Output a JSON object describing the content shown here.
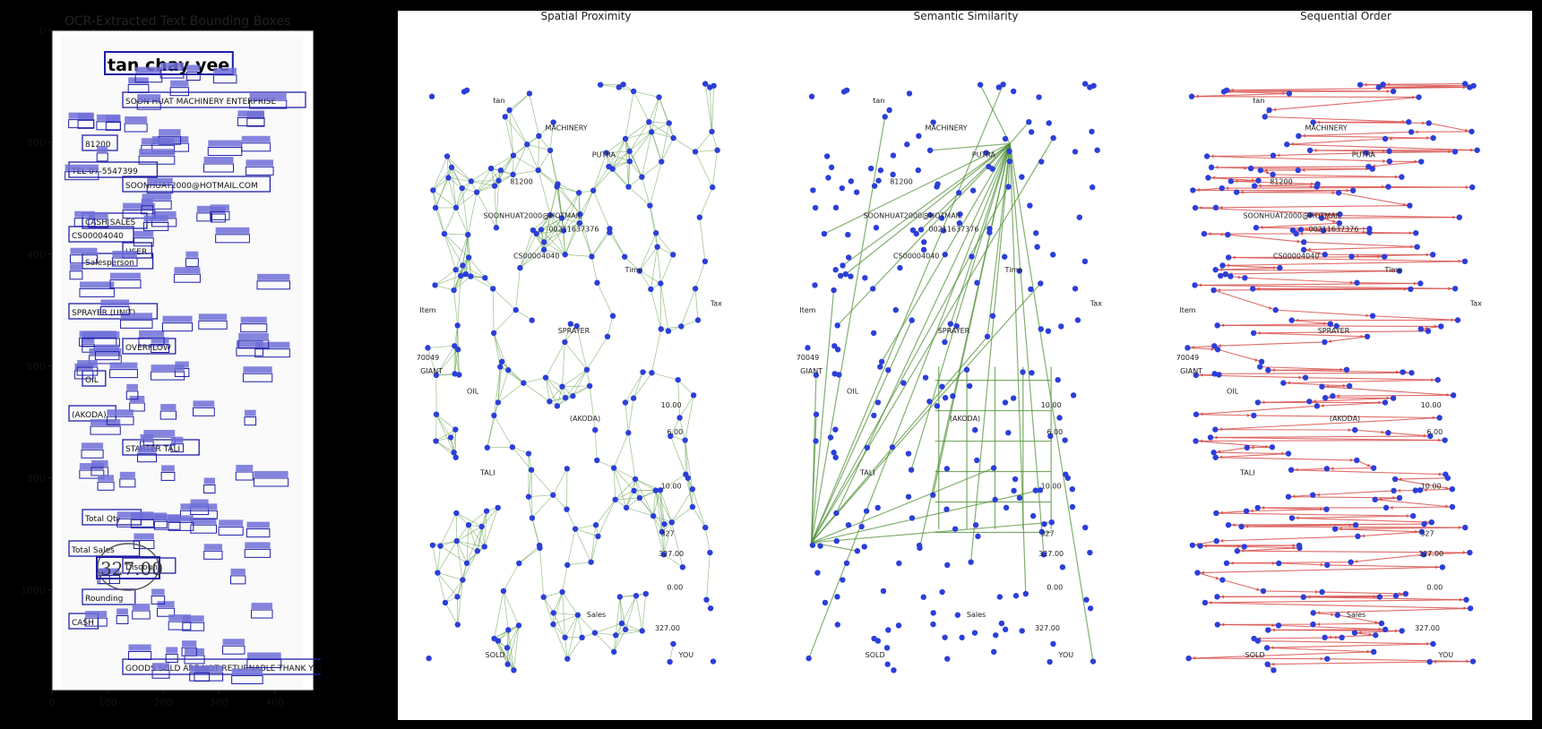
{
  "ocr_panel": {
    "title": "OCR-Extracted Text Bounding Boxes",
    "x_ticks": [
      "0",
      "100",
      "200",
      "300",
      "400"
    ],
    "y_ticks": [
      "0",
      "200",
      "400",
      "600",
      "800",
      "1000"
    ],
    "receipt_lines": [
      {
        "text": "tan chay yee",
        "big": true
      },
      {
        "text": "SOON HUAT MACHINERY ENTERPRISE",
        "big": false
      },
      {
        "text": "81200",
        "big": false
      },
      {
        "text": "TEL 07-5547399",
        "big": false
      },
      {
        "text": "SOONHUAT2000@HOTMAIL.COM",
        "big": false
      },
      {
        "text": "CASH SALES",
        "big": false
      },
      {
        "text": "CS00004040",
        "big": false
      },
      {
        "text": "USER",
        "big": false
      },
      {
        "text": "Salesperson",
        "big": false
      },
      {
        "text": "SPRAYER (UNIT)",
        "big": false
      },
      {
        "text": "OVERFLOW",
        "big": false
      },
      {
        "text": "OIL",
        "big": false
      },
      {
        "text": "(AKODA)",
        "big": false
      },
      {
        "text": "STARTER TALI",
        "big": false
      },
      {
        "text": "Total Qty",
        "big": false
      },
      {
        "text": "Total Sales",
        "big": false
      },
      {
        "text": "Discount",
        "big": false
      },
      {
        "text": "Rounding",
        "big": false
      },
      {
        "text": "CASH",
        "big": false
      },
      {
        "text": "GOODS SOLD ARE NOT RETURNABLE THANK YOU",
        "big": false
      }
    ],
    "handwritten_total": "327.00"
  },
  "graphs": [
    {
      "title": "Spatial Proximity",
      "edge_color": "#5a9a40",
      "node_labels": [
        "tan",
        "MACHINERY",
        "PUTRA",
        "81200",
        "SOONHUAT2000@HOTMAIL",
        "00211637376",
        "CS00004040",
        "Time",
        "Item",
        "Tax",
        "SPRAYER",
        "70049",
        "GIANT",
        "OIL",
        "(AKODA)",
        "10.00",
        "6.00",
        "TALI",
        "10.00",
        "327",
        "327.00",
        "0.00",
        "Sales",
        "327.00",
        "SOLD",
        "YOU"
      ]
    },
    {
      "title": "Semantic Similarity",
      "edge_color": "#4f8f35",
      "node_labels": [
        "tan",
        "MACHINERY",
        "PUTRA",
        "81200",
        "SOONHUAT2000@HOTMAIL",
        "00211637376",
        "CS00004040",
        "Time",
        "Item",
        "Tax",
        "SPRAYER",
        "70049",
        "GIANT",
        "OIL",
        "(AKODA)",
        "10.00",
        "6.00",
        "TALI",
        "10.00",
        "327",
        "327.00",
        "0.00",
        "Sales",
        "327.00",
        "SOLD",
        "YOU"
      ]
    },
    {
      "title": "Sequential Order",
      "edge_color": "#d9534f",
      "node_labels": [
        "tan",
        "MACHINERY",
        "PUTRA",
        "81200",
        "SOONHUAT2000@HOTMAIL",
        "00211637376",
        "CS00004040",
        "Time",
        "Item",
        "Tax",
        "SPRAYER",
        "70049",
        "GIANT",
        "OIL",
        "(AKODA)",
        "10.00",
        "6.00",
        "TALI",
        "10.00",
        "327",
        "327.00",
        "0.00",
        "Sales",
        "327.00",
        "SOLD",
        "YOU"
      ]
    }
  ],
  "colors": {
    "node": "#2b3fd9",
    "box_fill": "#6f6fd8",
    "box_stroke": "#1f1fa8"
  }
}
